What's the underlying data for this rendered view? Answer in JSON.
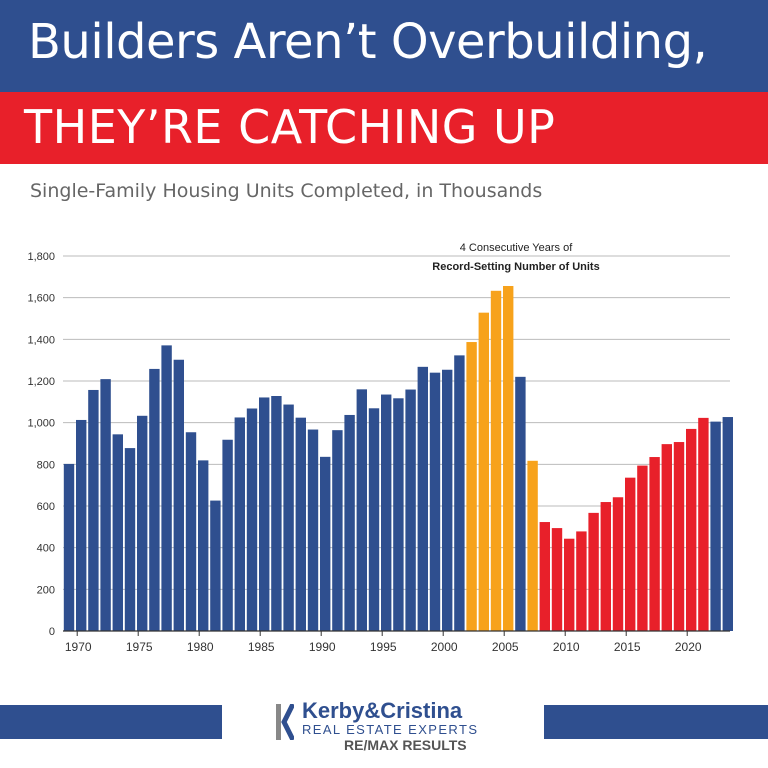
{
  "header": {
    "title": "Builders Aren’t Overbuilding,",
    "subtitle_banner": "THEY’RE CATCHING UP"
  },
  "colors": {
    "blue": "#2f4f8f",
    "orange": "#f7a21b",
    "red": "#e8202a",
    "grid": "#bbbbbb"
  },
  "chart_data": {
    "type": "bar",
    "title": "Single-Family Housing Units Completed, in Thousands",
    "xlabel": "",
    "ylabel": "",
    "ylim": [
      0,
      1800
    ],
    "yticks": [
      0,
      200,
      400,
      600,
      800,
      1000,
      1200,
      1400,
      1600,
      1800
    ],
    "ytick_labels": [
      "0",
      "200",
      "400",
      "600",
      "800",
      "1,000",
      "1,200",
      "1,400",
      "1,600",
      "1,800"
    ],
    "xtick_labels": [
      "1970",
      "1975",
      "1980",
      "1985",
      "1990",
      "1995",
      "2000",
      "2005",
      "2010",
      "2015",
      "2020"
    ],
    "categories": [
      1969,
      1970,
      1971,
      1972,
      1973,
      1974,
      1975,
      1976,
      1977,
      1978,
      1979,
      1980,
      1981,
      1982,
      1983,
      1984,
      1985,
      1986,
      1987,
      1988,
      1989,
      1990,
      1991,
      1992,
      1993,
      1994,
      1995,
      1996,
      1997,
      1998,
      1999,
      2000,
      2001,
      2002,
      2003,
      2004,
      2005,
      2006,
      2007,
      2008,
      2009,
      2010,
      2011,
      2012,
      2013,
      2014,
      2015,
      2016,
      2017,
      2018,
      2019,
      2020,
      2021,
      2022,
      2023
    ],
    "values": [
      802,
      1013,
      1157,
      1209,
      944,
      878,
      1033,
      1258,
      1371,
      1302,
      954,
      819,
      626,
      918,
      1025,
      1068,
      1121,
      1128,
      1087,
      1024,
      967,
      836,
      964,
      1037,
      1160,
      1069,
      1135,
      1117,
      1159,
      1268,
      1240,
      1254,
      1323,
      1387,
      1528,
      1633,
      1656,
      1220,
      817,
      523,
      494,
      443,
      478,
      567,
      619,
      642,
      736,
      794,
      835,
      897,
      907,
      970,
      1023,
      1005,
      1027
    ],
    "bar_groups": [
      "blue",
      "blue",
      "blue",
      "blue",
      "blue",
      "blue",
      "blue",
      "blue",
      "blue",
      "blue",
      "blue",
      "blue",
      "blue",
      "blue",
      "blue",
      "blue",
      "blue",
      "blue",
      "blue",
      "blue",
      "blue",
      "blue",
      "blue",
      "blue",
      "blue",
      "blue",
      "blue",
      "blue",
      "blue",
      "blue",
      "blue",
      "blue",
      "blue",
      "orange",
      "orange",
      "orange",
      "orange",
      "blue",
      "orange",
      "red",
      "red",
      "red",
      "red",
      "red",
      "red",
      "red",
      "red",
      "red",
      "red",
      "red",
      "red",
      "red",
      "red",
      "blue",
      "blue"
    ],
    "annotation": [
      "4 Consecutive Years of",
      "Record-Setting Number of Units"
    ]
  },
  "footer": {
    "logo_name": "Kerby&Cristina",
    "logo_tagline": "REAL ESTATE EXPERTS",
    "logo_brand": "RE/MAX RESULTS"
  }
}
